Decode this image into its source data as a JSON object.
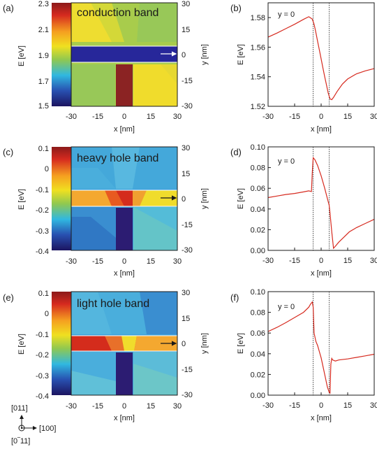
{
  "chart_data": [
    {
      "panel": "(a)",
      "type": "heatmap",
      "title": "conduction band",
      "colorbar_label": "E [eV]",
      "colorbar_range": [
        1.5,
        2.3
      ],
      "colorbar_ticks": [
        "2.3",
        "2.1",
        "1.9",
        "1.7",
        "1.5"
      ],
      "xlabel": "x [nm]",
      "ylabel": "y [nm]",
      "xticks": [
        "-30",
        "-15",
        "0",
        "15",
        "30"
      ],
      "yticks": [
        "30",
        "15",
        "0",
        "-15",
        "-30"
      ],
      "xlim": [
        -30,
        30
      ],
      "ylim": [
        -30,
        30
      ]
    },
    {
      "panel": "(b)",
      "type": "line",
      "annotation": "y = 0",
      "xlabel": "x [nm]",
      "ylabel": "E [eV]",
      "xlim": [
        -30,
        30
      ],
      "ylim": [
        1.52,
        1.59
      ],
      "xticks": [
        "-30",
        "-15",
        "0",
        "15",
        "30"
      ],
      "yticks": [
        "1.58",
        "1.56",
        "1.54",
        "1.52"
      ],
      "ytick_values": [
        1.58,
        1.56,
        1.54,
        1.52
      ],
      "vlines": [
        -4.5,
        4.5
      ],
      "series": [
        {
          "x": [
            -30,
            -25,
            -20,
            -15,
            -10,
            -7,
            -5,
            -4,
            -3,
            -2,
            -1,
            0,
            1,
            2,
            3,
            4,
            5,
            6,
            7,
            9,
            12,
            15,
            20,
            25,
            30
          ],
          "values": [
            1.5668,
            1.5695,
            1.5725,
            1.5755,
            1.5788,
            1.5806,
            1.579,
            1.5755,
            1.57,
            1.564,
            1.558,
            1.552,
            1.546,
            1.54,
            1.5345,
            1.529,
            1.525,
            1.5245,
            1.526,
            1.53,
            1.535,
            1.5385,
            1.542,
            1.544,
            1.5455
          ]
        }
      ]
    },
    {
      "panel": "(c)",
      "type": "heatmap",
      "title": "heavy hole band",
      "colorbar_label": "E [eV]",
      "colorbar_range": [
        -0.4,
        0.1
      ],
      "colorbar_ticks": [
        "0.1",
        "0",
        "-0.1",
        "-0.2",
        "-0.3",
        "-0.4"
      ],
      "xlabel": "x [nm]",
      "ylabel": "y [nm]",
      "xticks": [
        "-30",
        "-15",
        "0",
        "15",
        "30"
      ],
      "yticks": [
        "30",
        "15",
        "0",
        "-15",
        "-30"
      ],
      "xlim": [
        -30,
        30
      ],
      "ylim": [
        -30,
        30
      ]
    },
    {
      "panel": "(d)",
      "type": "line",
      "annotation": "y = 0",
      "xlabel": "x [nm]",
      "ylabel": "E [eV]",
      "xlim": [
        -30,
        30
      ],
      "ylim": [
        0,
        0.1
      ],
      "xticks": [
        "-30",
        "-15",
        "0",
        "15",
        "30"
      ],
      "yticks": [
        "0.10",
        "0.08",
        "0.06",
        "0.04",
        "0.02",
        "0.00"
      ],
      "ytick_values": [
        0.1,
        0.08,
        0.06,
        0.04,
        0.02,
        0.0
      ],
      "vlines": [
        -4.5,
        4.5
      ],
      "series": [
        {
          "x": [
            -30,
            -25,
            -20,
            -15,
            -10,
            -7,
            -5.5,
            -5,
            -4.5,
            -3.5,
            -2,
            0,
            2,
            4,
            4.5,
            5,
            6,
            7,
            8,
            10,
            13,
            16,
            20,
            25,
            30
          ],
          "values": [
            0.051,
            0.0525,
            0.054,
            0.055,
            0.0565,
            0.0575,
            0.0568,
            0.075,
            0.0895,
            0.0875,
            0.082,
            0.072,
            0.06,
            0.047,
            0.044,
            0.036,
            0.018,
            0.002,
            0.004,
            0.008,
            0.013,
            0.018,
            0.022,
            0.026,
            0.03
          ]
        }
      ]
    },
    {
      "panel": "(e)",
      "type": "heatmap",
      "title": "light hole band",
      "colorbar_label": "E [eV]",
      "colorbar_range": [
        -0.4,
        0.1
      ],
      "colorbar_ticks": [
        "0.1",
        "0",
        "-0.1",
        "-0.2",
        "-0.3",
        "-0.4"
      ],
      "xlabel": "x [nm]",
      "ylabel": "y [nm]",
      "xticks": [
        "-30",
        "-15",
        "0",
        "15",
        "30"
      ],
      "yticks": [
        "30",
        "15",
        "0",
        "-15",
        "-30"
      ],
      "xlim": [
        -30,
        30
      ],
      "ylim": [
        -30,
        30
      ]
    },
    {
      "panel": "(f)",
      "type": "line",
      "annotation": "y = 0",
      "xlabel": "x [nm]",
      "ylabel": "E [eV]",
      "xlim": [
        -30,
        30
      ],
      "ylim": [
        0,
        0.1
      ],
      "xticks": [
        "-30",
        "-15",
        "0",
        "15",
        "30"
      ],
      "yticks": [
        "0.10",
        "0.08",
        "0.06",
        "0.04",
        "0.02",
        "0.00"
      ],
      "ytick_values": [
        0.1,
        0.08,
        0.06,
        0.04,
        0.02,
        0.0
      ],
      "vlines": [
        -4.5,
        4.5
      ],
      "series": [
        {
          "x": [
            -30,
            -25,
            -20,
            -15,
            -10,
            -7,
            -6,
            -5,
            -4.5,
            -4,
            -3,
            -2,
            0,
            2,
            3.5,
            4.5,
            5,
            5.5,
            6,
            6.5,
            8,
            10,
            15,
            20,
            25,
            30
          ],
          "values": [
            0.0615,
            0.0655,
            0.07,
            0.075,
            0.08,
            0.085,
            0.088,
            0.09,
            0.085,
            0.06,
            0.052,
            0.048,
            0.036,
            0.02,
            0.008,
            0.003,
            0.002,
            0.03,
            0.0355,
            0.034,
            0.033,
            0.034,
            0.035,
            0.0365,
            0.038,
            0.0395
          ]
        }
      ]
    }
  ],
  "axes_note": {
    "v1": "[011]",
    "v2": "[100]",
    "v3": "[0‾11]"
  },
  "colors": {
    "curve": "#d62a1f",
    "rod": "#8b2323",
    "rod_dark": "#2c1c72",
    "band_a": "#27279a"
  }
}
